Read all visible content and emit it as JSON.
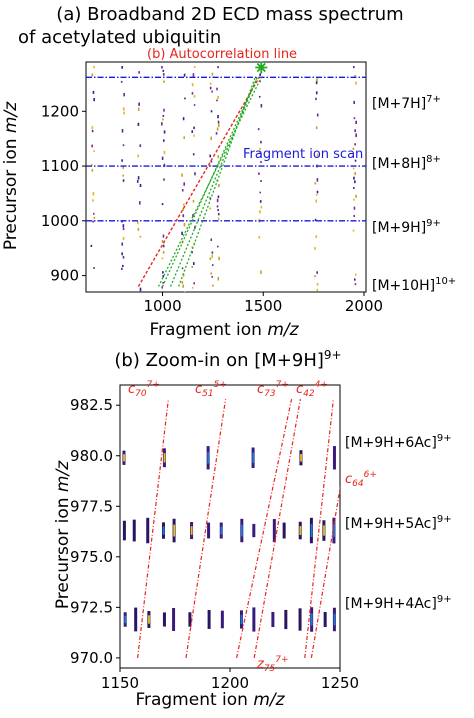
{
  "chart_data": [
    {
      "type": "scatter",
      "title_line1": "(a) Broadband 2D ECD mass spectrum",
      "title_line2": "of acetylated ubiquitin",
      "xlabel_prefix": "Fragment ion ",
      "ylabel_prefix": "Precursor ion ",
      "label_mz": "m/z",
      "xlim": [
        620,
        2010
      ],
      "ylim": [
        870,
        1290
      ],
      "xticks": [
        1000,
        1500,
        2000
      ],
      "yticks": [
        900,
        1000,
        1100,
        1200
      ],
      "grid": false,
      "annotations": {
        "autocorrelation": "(b) Autocorrelation line",
        "fragment_scan": "Fragment ion scan"
      },
      "ion_labels": [
        {
          "base": "[M+7H]",
          "sup": "7+",
          "y": 1262
        },
        {
          "base": "[M+8H]",
          "sup": "8+",
          "y": 1100
        },
        {
          "base": "[M+9H]",
          "sup": "9+",
          "y": 987
        },
        {
          "base": "[M+10H]",
          "sup": "10+",
          "y": 886
        }
      ],
      "scan_lines_y": [
        1262,
        1100,
        1000
      ],
      "vertical_lines_x": [
        650,
        800,
        880,
        1000,
        1100,
        1150,
        1240,
        1270,
        1480,
        1760,
        1950
      ],
      "autocorrelation_line": {
        "x": [
          880,
          1480
        ],
        "y": [
          880,
          1262
        ]
      },
      "green_lines": [
        {
          "x": [
            980,
            1490
          ],
          "y": [
            880,
            1262
          ]
        },
        {
          "x": [
            1000,
            1470
          ],
          "y": [
            880,
            1262
          ]
        },
        {
          "x": [
            1040,
            1470
          ],
          "y": [
            880,
            1262
          ]
        },
        {
          "x": [
            1080,
            1460
          ],
          "y": [
            880,
            1262
          ]
        }
      ],
      "star_marker": {
        "x": 1490,
        "y": 1280
      }
    },
    {
      "type": "scatter",
      "title_prefix": "(b) Zoom-in on ",
      "title_ion": {
        "base": "[M+9H]",
        "sup": "9+"
      },
      "xlabel_prefix": "Fragment ion ",
      "ylabel_prefix": "Precursor ion ",
      "label_mz": "m/z",
      "xlim": [
        1150,
        1250
      ],
      "ylim": [
        969.5,
        983.5
      ],
      "xticks": [
        1150,
        1200,
        1250
      ],
      "yticks": [
        970.0,
        972.5,
        975.0,
        977.5,
        980.0,
        982.5
      ],
      "xtick_labels": [
        "1150",
        "1200",
        "1250"
      ],
      "ytick_labels": [
        "970.0",
        "972.5",
        "975.0",
        "977.5",
        "980.0",
        "982.5"
      ],
      "grid": false,
      "ion_labels": [
        {
          "base": "[M+9H+6Ac]",
          "sup": "9+",
          "y": 979.9
        },
        {
          "base": "[M+9H+5Ac]",
          "sup": "9+",
          "y": 976.3
        },
        {
          "base": "[M+9H+4Ac]",
          "sup": "9+",
          "y": 971.9
        }
      ],
      "fragment_labels": [
        {
          "base": "c",
          "sub": "70",
          "sup": "7+"
        },
        {
          "base": "c",
          "sub": "51",
          "sup": "5+"
        },
        {
          "base": "c",
          "sub": "73",
          "sup": "7+"
        },
        {
          "base": "c",
          "sub": "42",
          "sup": "4+"
        },
        {
          "base": "c",
          "sub": "64",
          "sup": "6+"
        },
        {
          "base": "z",
          "sub": "75",
          "sup": "7+"
        }
      ],
      "rows_y": [
        979.9,
        976.3,
        971.9
      ],
      "peak_x": [
        1152,
        1157,
        1163,
        1170,
        1174,
        1182,
        1190,
        1196,
        1205,
        1211,
        1220,
        1225,
        1232,
        1237,
        1243,
        1247
      ],
      "diagonal_lines": [
        {
          "x": [
            1158,
            1172
          ],
          "y": [
            970.0,
            982.8
          ]
        },
        {
          "x": [
            1180,
            1198
          ],
          "y": [
            970.0,
            982.8
          ]
        },
        {
          "x": [
            1203,
            1228
          ],
          "y": [
            970.0,
            982.8
          ]
        },
        {
          "x": [
            1211,
            1232
          ],
          "y": [
            970.0,
            982.8
          ]
        },
        {
          "x": [
            1234,
            1247
          ],
          "y": [
            970.0,
            982.8
          ]
        },
        {
          "x": [
            1237,
            1251
          ],
          "y": [
            970.0,
            979.0
          ]
        }
      ]
    }
  ]
}
